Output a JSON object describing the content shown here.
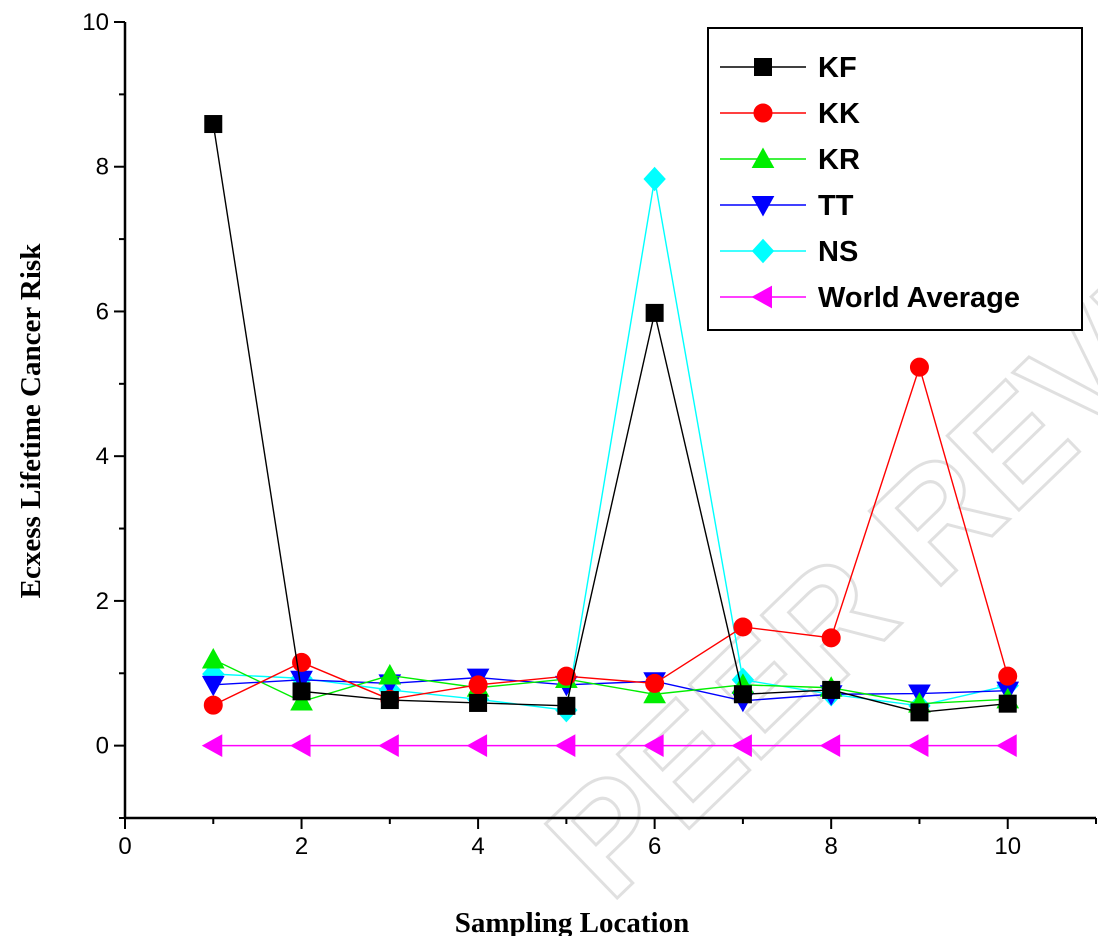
{
  "chart_data": {
    "type": "line",
    "xlabel": "Sampling Location",
    "ylabel": "Ecxess Lifetime Cancer Risk",
    "xlim": [
      0,
      11
    ],
    "ylim": [
      -1,
      10
    ],
    "x_ticks": [
      0,
      2,
      4,
      6,
      8,
      10
    ],
    "y_ticks": [
      0,
      2,
      4,
      6,
      8,
      10
    ],
    "grid": false,
    "legend_position": "top-right",
    "x": [
      1,
      2,
      3,
      4,
      5,
      6,
      7,
      8,
      9,
      10
    ],
    "series": [
      {
        "name": "KF",
        "color": "#000000",
        "marker": "square",
        "values": [
          8.59,
          0.75,
          0.63,
          0.59,
          0.55,
          5.98,
          0.71,
          0.77,
          0.46,
          0.58
        ]
      },
      {
        "name": "KK",
        "color": "#ff0000",
        "marker": "circle",
        "values": [
          0.56,
          1.15,
          0.64,
          0.84,
          0.96,
          0.86,
          1.64,
          1.49,
          5.23,
          0.96
        ]
      },
      {
        "name": "KR",
        "color": "#00ee00",
        "marker": "triangle-up",
        "values": [
          1.19,
          0.61,
          0.97,
          0.8,
          0.92,
          0.71,
          0.84,
          0.8,
          0.58,
          0.64
        ]
      },
      {
        "name": "TT",
        "color": "#0000ff",
        "marker": "triangle-down",
        "values": [
          0.84,
          0.91,
          0.86,
          0.94,
          0.84,
          0.89,
          0.62,
          0.71,
          0.72,
          0.76
        ]
      },
      {
        "name": "NS",
        "color": "#00ffff",
        "marker": "diamond",
        "values": [
          0.99,
          0.93,
          0.77,
          0.64,
          0.49,
          7.83,
          0.91,
          0.71,
          0.55,
          0.83
        ]
      },
      {
        "name": "World Average",
        "color": "#ff00ff",
        "marker": "triangle-left",
        "values": [
          0,
          0,
          0,
          0,
          0,
          0,
          0,
          0,
          0,
          0
        ]
      }
    ],
    "watermark": "PEER REVIEW"
  }
}
